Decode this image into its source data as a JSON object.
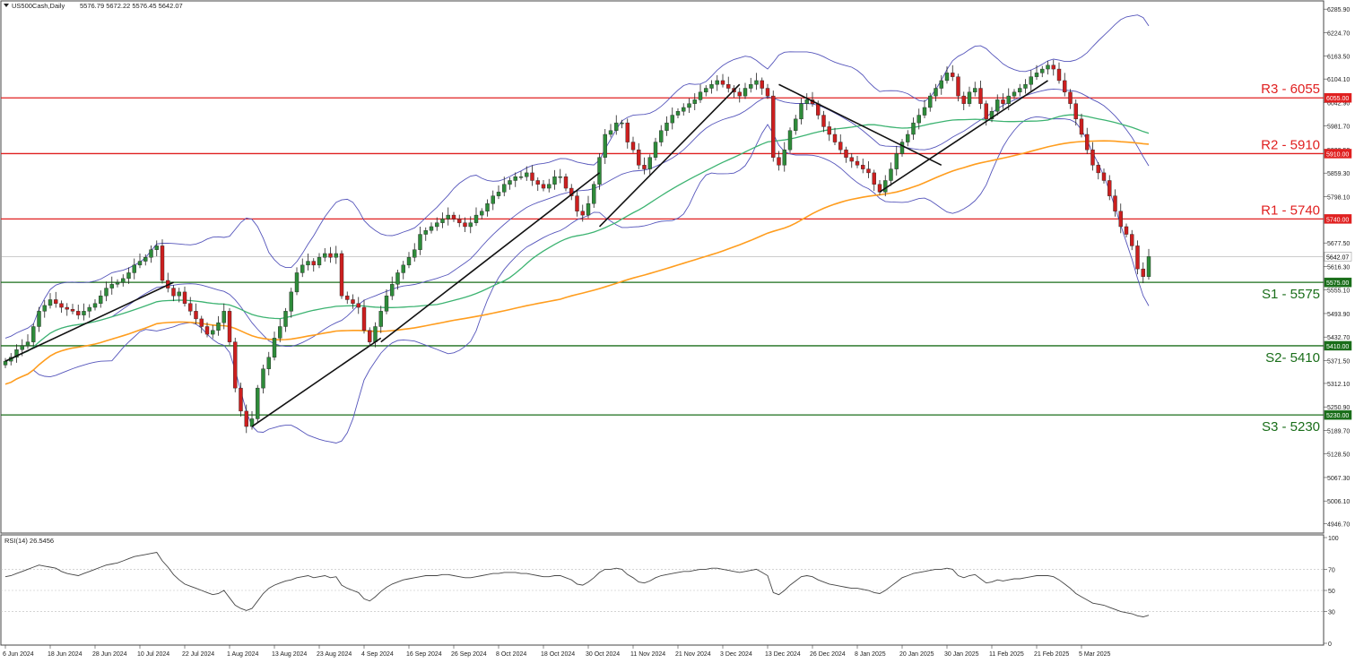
{
  "window": {
    "symbol_label": "US500Cash,Daily",
    "ohlc_label": "5576.79 5672.22 5576.45 5642.07"
  },
  "colors": {
    "bull": "#2e8b3a",
    "bear": "#cc1f1f",
    "wick": "#222222",
    "bollinger": "#5555bb",
    "ma_green": "#3cb371",
    "ma_orange": "#ff9d1e",
    "resistance": "#e02020",
    "support": "#1a6e1a",
    "trendline": "#111111",
    "rsi_line": "#444444",
    "current_price_line": "#999999"
  },
  "chart_data": {
    "type": "candlestick",
    "price_axis": {
      "ticks": [
        "6285.90",
        "6224.70",
        "6163.50",
        "6104.10",
        "6042.90",
        "5981.70",
        "5920.50",
        "5859.30",
        "5798.10",
        "5677.50",
        "5616.30",
        "5555.10",
        "5493.90",
        "5432.70",
        "5371.50",
        "5312.10",
        "5250.90",
        "5189.70",
        "5128.50",
        "5067.30",
        "5006.10",
        "4946.70"
      ],
      "tick_values": [
        6285.9,
        6224.7,
        6163.5,
        6104.1,
        6042.9,
        5981.7,
        5920.5,
        5859.3,
        5798.1,
        5677.5,
        5616.3,
        5555.1,
        5493.9,
        5432.7,
        5371.5,
        5312.1,
        5250.9,
        5189.7,
        5128.5,
        5067.3,
        5006.1,
        4946.7
      ],
      "range": [
        4925,
        6305
      ]
    },
    "x_axis": {
      "labels": [
        "6 Jun 2024",
        "18 Jun 2024",
        "28 Jun 2024",
        "10 Jul 2024",
        "22 Jul 2024",
        "1 Aug 2024",
        "13 Aug 2024",
        "23 Aug 2024",
        "4 Sep 2024",
        "16 Sep 2024",
        "26 Sep 2024",
        "8 Oct 2024",
        "18 Oct 2024",
        "30 Oct 2024",
        "11 Nov 2024",
        "21 Nov 2024",
        "3 Dec 2024",
        "13 Dec 2024",
        "26 Dec 2024",
        "8 Jan 2025",
        "20 Jan 2025",
        "30 Jan 2025",
        "11 Feb 2025",
        "21 Feb 2025",
        "5 Mar 2025"
      ],
      "label_bar_index": [
        0,
        8,
        16,
        24,
        32,
        40,
        48,
        56,
        64,
        72,
        80,
        88,
        96,
        104,
        112,
        120,
        128,
        136,
        144,
        152,
        160,
        168,
        176,
        184,
        192
      ]
    },
    "levels": [
      {
        "name": "R3 - 6055",
        "value": 6055,
        "tag": "6055.00",
        "kind": "resistance"
      },
      {
        "name": "R2 - 5910",
        "value": 5910,
        "tag": "5910.00",
        "kind": "resistance"
      },
      {
        "name": "R1 - 5740",
        "value": 5740,
        "tag": "5740.00",
        "kind": "resistance"
      },
      {
        "name": "S1 - 5575",
        "value": 5575,
        "tag": "5575.00",
        "kind": "support"
      },
      {
        "name": "S2- 5410",
        "value": 5410,
        "tag": "5410.00",
        "kind": "support"
      },
      {
        "name": "S3 - 5230",
        "value": 5230,
        "tag": "5230.00",
        "kind": "support"
      }
    ],
    "current_price": {
      "value": 5642.07,
      "tag": "5642.07"
    },
    "closes": [
      5370,
      5380,
      5400,
      5410,
      5420,
      5460,
      5500,
      5515,
      5530,
      5520,
      5510,
      5505,
      5500,
      5490,
      5500,
      5510,
      5520,
      5540,
      5560,
      5570,
      5575,
      5585,
      5600,
      5620,
      5630,
      5640,
      5660,
      5670,
      5580,
      5560,
      5540,
      5550,
      5520,
      5500,
      5480,
      5460,
      5440,
      5450,
      5470,
      5500,
      5420,
      5300,
      5240,
      5200,
      5220,
      5300,
      5350,
      5380,
      5430,
      5460,
      5500,
      5550,
      5600,
      5620,
      5630,
      5620,
      5640,
      5650,
      5640,
      5650,
      5540,
      5530,
      5520,
      5510,
      5450,
      5420,
      5460,
      5500,
      5540,
      5570,
      5600,
      5620,
      5640,
      5660,
      5700,
      5710,
      5720,
      5730,
      5740,
      5750,
      5740,
      5730,
      5720,
      5730,
      5750,
      5760,
      5780,
      5800,
      5810,
      5830,
      5840,
      5850,
      5850,
      5860,
      5840,
      5830,
      5820,
      5830,
      5850,
      5850,
      5820,
      5800,
      5760,
      5750,
      5780,
      5830,
      5900,
      5960,
      5970,
      5990,
      5990,
      5940,
      5920,
      5880,
      5870,
      5900,
      5940,
      5970,
      5990,
      6010,
      6020,
      6030,
      6040,
      6050,
      6070,
      6080,
      6090,
      6100,
      6090,
      6080,
      6070,
      6060,
      6080,
      6090,
      6100,
      6080,
      6060,
      5900,
      5880,
      5920,
      5970,
      6000,
      6040,
      6050,
      6040,
      6010,
      5980,
      5960,
      5940,
      5920,
      5900,
      5890,
      5880,
      5870,
      5860,
      5830,
      5810,
      5840,
      5870,
      5910,
      5940,
      5960,
      5990,
      6010,
      6030,
      6060,
      6080,
      6100,
      6120,
      6110,
      6060,
      6040,
      6070,
      6080,
      6040,
      6000,
      6020,
      6050,
      6040,
      6060,
      6070,
      6080,
      6090,
      6110,
      6120,
      6130,
      6140,
      6130,
      6100,
      6070,
      6040,
      6000,
      5960,
      5920,
      5880,
      5860,
      5840,
      5800,
      5760,
      5720,
      5700,
      5670,
      5610,
      5590,
      5642
    ],
    "rsi": {
      "label": "RSI(14) 26.5456",
      "ticks": [
        "100",
        "70",
        "50",
        "30",
        "0"
      ],
      "tick_values": [
        100,
        70,
        50,
        30,
        0
      ],
      "values": [
        63,
        64,
        66,
        68,
        70,
        72,
        74,
        73,
        72,
        71,
        68,
        66,
        65,
        64,
        66,
        68,
        70,
        72,
        74,
        75,
        76,
        78,
        80,
        82,
        83,
        84,
        85,
        86,
        78,
        72,
        65,
        60,
        56,
        54,
        52,
        50,
        48,
        46,
        47,
        50,
        43,
        36,
        33,
        31,
        33,
        40,
        47,
        52,
        55,
        57,
        59,
        60,
        62,
        63,
        64,
        62,
        63,
        64,
        62,
        63,
        55,
        52,
        50,
        48,
        42,
        40,
        44,
        49,
        53,
        56,
        58,
        60,
        61,
        62,
        63,
        64,
        64,
        64,
        65,
        65,
        64,
        63,
        62,
        62,
        63,
        64,
        65,
        66,
        66,
        67,
        67,
        67,
        66,
        66,
        65,
        64,
        63,
        63,
        64,
        64,
        62,
        60,
        56,
        55,
        58,
        62,
        67,
        70,
        70,
        71,
        70,
        65,
        62,
        58,
        57,
        59,
        62,
        64,
        65,
        66,
        67,
        68,
        68,
        69,
        70,
        70,
        71,
        71,
        70,
        69,
        68,
        67,
        68,
        69,
        70,
        67,
        64,
        48,
        46,
        50,
        55,
        59,
        63,
        64,
        63,
        60,
        58,
        56,
        55,
        54,
        53,
        52,
        52,
        51,
        50,
        48,
        47,
        50,
        54,
        58,
        62,
        64,
        66,
        67,
        68,
        69,
        70,
        70,
        71,
        70,
        64,
        62,
        64,
        65,
        61,
        57,
        58,
        60,
        59,
        60,
        61,
        61,
        62,
        63,
        64,
        64,
        64,
        63,
        60,
        56,
        52,
        47,
        44,
        41,
        38,
        37,
        36,
        34,
        32,
        30,
        29,
        28,
        26,
        25,
        26.5
      ]
    }
  }
}
